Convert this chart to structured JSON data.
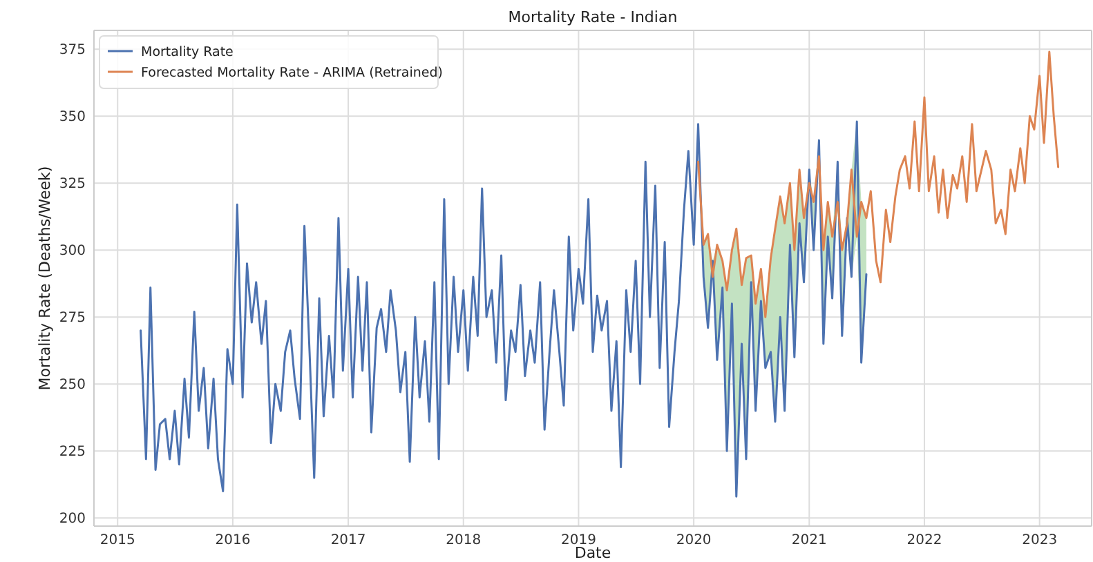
{
  "chart_data": {
    "type": "line",
    "title": "Mortality Rate - Indian",
    "xlabel": "Date",
    "ylabel": "Mortality Rate (Deaths/Week)",
    "xlim": [
      "2014-10-18",
      "2023-06-15"
    ],
    "ylim": [
      197,
      382
    ],
    "xticks": [
      {
        "value": "2015-01-01",
        "label": "2015"
      },
      {
        "value": "2016-01-01",
        "label": "2016"
      },
      {
        "value": "2017-01-01",
        "label": "2017"
      },
      {
        "value": "2018-01-01",
        "label": "2018"
      },
      {
        "value": "2019-01-01",
        "label": "2019"
      },
      {
        "value": "2020-01-01",
        "label": "2020"
      },
      {
        "value": "2021-01-01",
        "label": "2021"
      },
      {
        "value": "2022-01-01",
        "label": "2022"
      },
      {
        "value": "2023-01-01",
        "label": "2023"
      }
    ],
    "yticks": [
      200,
      225,
      250,
      275,
      300,
      325,
      350,
      375
    ],
    "grid": true,
    "legend": "top left",
    "line_style": "solid",
    "marker": "none",
    "series": [
      {
        "name": "Mortality Rate",
        "color": "#4c72b0",
        "x": [
          "2015-03-15",
          "2015-04-01",
          "2015-04-15",
          "2015-05-01",
          "2015-05-15",
          "2015-06-01",
          "2015-06-15",
          "2015-07-01",
          "2015-07-15",
          "2015-08-01",
          "2015-08-15",
          "2015-09-01",
          "2015-09-15",
          "2015-10-01",
          "2015-10-15",
          "2015-11-01",
          "2015-11-15",
          "2015-12-01",
          "2015-12-15",
          "2016-01-01",
          "2016-01-15",
          "2016-02-01",
          "2016-02-15",
          "2016-03-01",
          "2016-03-15",
          "2016-04-01",
          "2016-04-15",
          "2016-05-01",
          "2016-05-15",
          "2016-06-01",
          "2016-06-15",
          "2016-07-01",
          "2016-07-15",
          "2016-08-01",
          "2016-08-15",
          "2016-09-01",
          "2016-09-15",
          "2016-10-01",
          "2016-10-15",
          "2016-11-01",
          "2016-11-15",
          "2016-12-01",
          "2016-12-15",
          "2017-01-01",
          "2017-01-15",
          "2017-02-01",
          "2017-02-15",
          "2017-03-01",
          "2017-03-15",
          "2017-04-01",
          "2017-04-15",
          "2017-05-01",
          "2017-05-15",
          "2017-06-01",
          "2017-06-15",
          "2017-07-01",
          "2017-07-15",
          "2017-08-01",
          "2017-08-15",
          "2017-09-01",
          "2017-09-15",
          "2017-10-01",
          "2017-10-15",
          "2017-11-01",
          "2017-11-15",
          "2017-12-01",
          "2017-12-15",
          "2018-01-01",
          "2018-01-15",
          "2018-02-01",
          "2018-02-15",
          "2018-03-01",
          "2018-03-15",
          "2018-04-01",
          "2018-04-15",
          "2018-05-01",
          "2018-05-15",
          "2018-06-01",
          "2018-06-15",
          "2018-07-01",
          "2018-07-15",
          "2018-08-01",
          "2018-08-15",
          "2018-09-01",
          "2018-09-15",
          "2018-10-01",
          "2018-10-15",
          "2018-11-01",
          "2018-11-15",
          "2018-12-01",
          "2018-12-15",
          "2019-01-01",
          "2019-01-15",
          "2019-02-01",
          "2019-02-15",
          "2019-03-01",
          "2019-03-15",
          "2019-04-01",
          "2019-04-15",
          "2019-05-01",
          "2019-05-15",
          "2019-06-01",
          "2019-06-15",
          "2019-07-01",
          "2019-07-15",
          "2019-08-01",
          "2019-08-15",
          "2019-09-01",
          "2019-09-15",
          "2019-10-01",
          "2019-10-15",
          "2019-11-01",
          "2019-11-15",
          "2019-12-01",
          "2019-12-15",
          "2020-01-01",
          "2020-01-15",
          "2020-02-01",
          "2020-02-15",
          "2020-03-01",
          "2020-03-15",
          "2020-04-01",
          "2020-04-15",
          "2020-05-01",
          "2020-05-15",
          "2020-06-01",
          "2020-06-15",
          "2020-07-01",
          "2020-07-15",
          "2020-08-01",
          "2020-08-15",
          "2020-09-01",
          "2020-09-15",
          "2020-10-01",
          "2020-10-15",
          "2020-11-01",
          "2020-11-15",
          "2020-12-01",
          "2020-12-15",
          "2021-01-01",
          "2021-01-15",
          "2021-02-01",
          "2021-02-15",
          "2021-03-01",
          "2021-03-15",
          "2021-04-01",
          "2021-04-15",
          "2021-05-01",
          "2021-05-15",
          "2021-06-01",
          "2021-06-15",
          "2021-07-01"
        ],
        "values": [
          270,
          222,
          286,
          218,
          235,
          237,
          222,
          240,
          220,
          252,
          230,
          277,
          240,
          256,
          226,
          252,
          222,
          210,
          263,
          250,
          317,
          245,
          295,
          273,
          288,
          265,
          281,
          228,
          250,
          240,
          262,
          270,
          252,
          237,
          309,
          260,
          215,
          282,
          238,
          268,
          245,
          312,
          255,
          293,
          245,
          290,
          255,
          288,
          232,
          271,
          278,
          262,
          285,
          270,
          247,
          262,
          221,
          275,
          245,
          266,
          236,
          288,
          222,
          319,
          250,
          290,
          262,
          285,
          255,
          290,
          268,
          323,
          275,
          285,
          258,
          298,
          244,
          270,
          262,
          287,
          253,
          270,
          258,
          288,
          233,
          262,
          285,
          262,
          242,
          305,
          270,
          293,
          280,
          319,
          262,
          283,
          270,
          281,
          240,
          266,
          219,
          285,
          262,
          296,
          250,
          333,
          275,
          324,
          256,
          303,
          234,
          262,
          281,
          315,
          337,
          302,
          347,
          290,
          271,
          296,
          259,
          286,
          225,
          280,
          208,
          265,
          222,
          288,
          240,
          281,
          256,
          262,
          236,
          275,
          240,
          302,
          260,
          310,
          288,
          330,
          300,
          341,
          265,
          305,
          282,
          333,
          268,
          312,
          290,
          348,
          258,
          291
        ]
      },
      {
        "color": "#c3e2c2",
        "x": [
          "2020-01-15",
          "2020-02-01",
          "2020-02-15",
          "2020-03-01",
          "2020-03-15",
          "2020-04-01",
          "2020-04-15",
          "2020-05-01",
          "2020-05-15",
          "2020-06-01",
          "2020-06-15",
          "2020-07-01",
          "2020-07-15",
          "2020-08-01",
          "2020-08-15",
          "2020-09-01",
          "2020-09-15",
          "2020-10-01",
          "2020-10-15",
          "2020-11-01",
          "2020-11-15",
          "2020-12-01",
          "2020-12-15",
          "2021-01-01",
          "2021-01-15",
          "2021-02-01",
          "2021-02-15",
          "2021-03-01",
          "2021-03-15",
          "2021-04-01",
          "2021-04-15",
          "2021-05-01",
          "2021-05-15",
          "2021-06-01",
          "2021-06-15",
          "2021-07-01"
        ],
        "values": [
          null,
          null,
          null,
          null,
          null,
          null,
          null,
          null,
          null,
          null,
          null,
          null,
          null,
          null,
          null,
          null,
          null,
          null,
          null,
          null,
          null,
          null,
          null,
          null,
          null,
          null,
          null,
          null,
          null,
          null,
          null,
          null,
          null,
          null,
          null,
          null
        ],
        "lower": [
          333,
          290,
          271,
          290,
          259,
          286,
          225,
          280,
          208,
          265,
          222,
          288,
          240,
          281,
          256,
          262,
          236,
          275,
          240,
          302,
          260,
          310,
          288,
          325,
          300,
          335,
          265,
          305,
          282,
          318,
          268,
          310,
          290,
          305,
          258,
          291
        ],
        "upper": [
          333,
          302,
          306,
          296,
          302,
          296,
          285,
          300,
          308,
          287,
          297,
          298,
          280,
          293,
          275,
          297,
          308,
          320,
          310,
          325,
          300,
          330,
          312,
          330,
          318,
          341,
          300,
          318,
          305,
          333,
          300,
          312,
          330,
          348,
          318,
          312
        ]
      },
      {
        "name": "Forecasted Mortality Rate - ARIMA (Retrained)",
        "color": "#dd8452",
        "x": [
          "2020-01-15",
          "2020-02-01",
          "2020-02-15",
          "2020-03-01",
          "2020-03-15",
          "2020-04-01",
          "2020-04-15",
          "2020-05-01",
          "2020-05-15",
          "2020-06-01",
          "2020-06-15",
          "2020-07-01",
          "2020-07-15",
          "2020-08-01",
          "2020-08-15",
          "2020-09-01",
          "2020-09-15",
          "2020-10-01",
          "2020-10-15",
          "2020-11-01",
          "2020-11-15",
          "2020-12-01",
          "2020-12-15",
          "2021-01-01",
          "2021-01-15",
          "2021-02-01",
          "2021-02-15",
          "2021-03-01",
          "2021-03-15",
          "2021-04-01",
          "2021-04-15",
          "2021-05-01",
          "2021-05-15",
          "2021-06-01",
          "2021-06-15",
          "2021-07-01",
          "2021-07-15",
          "2021-08-01",
          "2021-08-15",
          "2021-09-01",
          "2021-09-15",
          "2021-10-01",
          "2021-10-15",
          "2021-11-01",
          "2021-11-15",
          "2021-12-01",
          "2021-12-15",
          "2022-01-01",
          "2022-01-15",
          "2022-02-01",
          "2022-02-15",
          "2022-03-01",
          "2022-03-15",
          "2022-04-01",
          "2022-04-15",
          "2022-05-01",
          "2022-05-15",
          "2022-06-01",
          "2022-06-15",
          "2022-07-01",
          "2022-07-15",
          "2022-08-01",
          "2022-08-15",
          "2022-09-01",
          "2022-09-15",
          "2022-10-01",
          "2022-10-15",
          "2022-11-01",
          "2022-11-15",
          "2022-12-01",
          "2022-12-15",
          "2023-01-01",
          "2023-01-15",
          "2023-02-01",
          "2023-02-15",
          "2023-03-01"
        ],
        "values": [
          333,
          302,
          306,
          290,
          302,
          296,
          285,
          300,
          308,
          287,
          297,
          298,
          280,
          293,
          275,
          297,
          308,
          320,
          310,
          325,
          300,
          330,
          312,
          325,
          318,
          335,
          300,
          318,
          305,
          318,
          300,
          310,
          330,
          305,
          318,
          312,
          322,
          296,
          288,
          315,
          303,
          320,
          330,
          335,
          323,
          348,
          322,
          357,
          322,
          335,
          314,
          330,
          312,
          328,
          323,
          335,
          318,
          347,
          322,
          330,
          337,
          330,
          310,
          315,
          306,
          330,
          322,
          338,
          325,
          350,
          345,
          365,
          340,
          374,
          350,
          331
        ]
      }
    ]
  }
}
